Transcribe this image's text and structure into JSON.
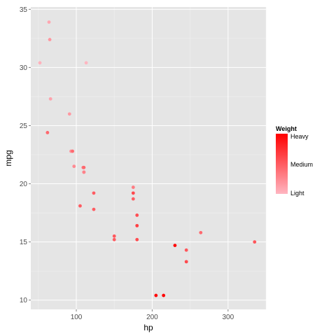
{
  "chart_data": {
    "type": "scatter",
    "xlabel": "hp",
    "ylabel": "mpg",
    "xlim": [
      40,
      350
    ],
    "ylim": [
      9.2,
      35.2
    ],
    "x_ticks": [
      100,
      200,
      300
    ],
    "y_ticks": [
      10,
      15,
      20,
      25,
      30,
      35
    ],
    "grid": true,
    "points": [
      {
        "x": 64,
        "y": 33.9,
        "w": 1.835
      },
      {
        "x": 65,
        "y": 32.4,
        "w": 2.2
      },
      {
        "x": 52,
        "y": 30.4,
        "w": 1.615
      },
      {
        "x": 113,
        "y": 30.4,
        "w": 1.513
      },
      {
        "x": 66,
        "y": 27.3,
        "w": 1.935
      },
      {
        "x": 91,
        "y": 26.0,
        "w": 2.14
      },
      {
        "x": 62,
        "y": 24.4,
        "w": 3.19
      },
      {
        "x": 93,
        "y": 22.8,
        "w": 2.32
      },
      {
        "x": 95,
        "y": 22.8,
        "w": 3.15
      },
      {
        "x": 97,
        "y": 21.5,
        "w": 2.465
      },
      {
        "x": 109,
        "y": 21.4,
        "w": 2.78
      },
      {
        "x": 110,
        "y": 21.4,
        "w": 3.215
      },
      {
        "x": 110,
        "y": 21.0,
        "w": 2.875
      },
      {
        "x": 110,
        "y": 21.0,
        "w": 2.62
      },
      {
        "x": 175,
        "y": 19.7,
        "w": 2.77
      },
      {
        "x": 123,
        "y": 19.2,
        "w": 3.44
      },
      {
        "x": 175,
        "y": 19.2,
        "w": 3.845
      },
      {
        "x": 105,
        "y": 18.1,
        "w": 3.46
      },
      {
        "x": 175,
        "y": 18.7,
        "w": 3.44
      },
      {
        "x": 123,
        "y": 17.8,
        "w": 3.44
      },
      {
        "x": 180,
        "y": 17.3,
        "w": 3.73
      },
      {
        "x": 180,
        "y": 16.4,
        "w": 4.07
      },
      {
        "x": 264,
        "y": 15.8,
        "w": 3.17
      },
      {
        "x": 150,
        "y": 15.5,
        "w": 3.52
      },
      {
        "x": 150,
        "y": 15.2,
        "w": 3.435
      },
      {
        "x": 180,
        "y": 15.2,
        "w": 3.78
      },
      {
        "x": 335,
        "y": 15.0,
        "w": 3.57
      },
      {
        "x": 245,
        "y": 14.3,
        "w": 3.57
      },
      {
        "x": 230,
        "y": 14.7,
        "w": 5.345
      },
      {
        "x": 245,
        "y": 13.3,
        "w": 3.84
      },
      {
        "x": 205,
        "y": 10.4,
        "w": 5.25
      },
      {
        "x": 215,
        "y": 10.4,
        "w": 5.424
      }
    ],
    "legend": {
      "title": "Weight",
      "labels": [
        "Heavy",
        "Medium",
        "Light"
      ],
      "placement": "right",
      "color_low": "#ffb6c1",
      "color_high": "#ff0000"
    }
  },
  "colors": {
    "panel_background": "#e5e5e5",
    "grid_major": "#ffffff",
    "grid_minor": "#f2f2f2"
  }
}
